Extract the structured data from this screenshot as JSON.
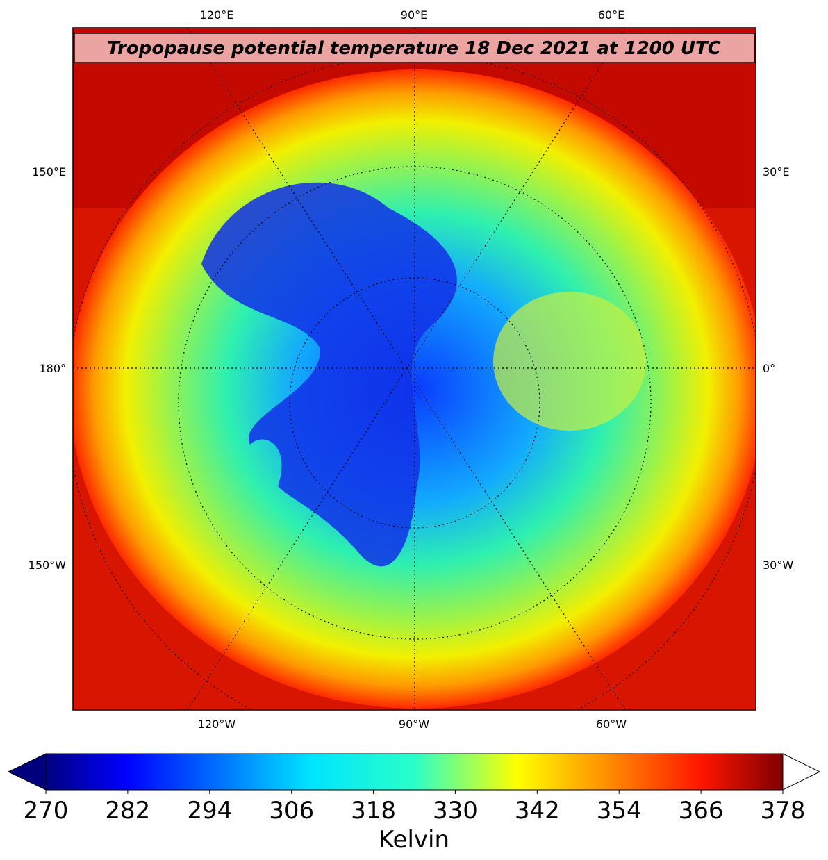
{
  "map": {
    "title": "Tropopause potential temperature 18 Dec 2021 at 1200 UTC",
    "top_labels": [
      "120°E",
      "90°E",
      "60°E"
    ],
    "bottom_labels": [
      "120°W",
      "90°W",
      "60°W"
    ],
    "left_labels": [
      "150°E",
      "180°",
      "150°W"
    ],
    "right_labels": [
      "30°E",
      "0°",
      "30°W"
    ]
  },
  "colorbar": {
    "label": "Kelvin",
    "colormap": "jet",
    "extend": "both",
    "lim": [
      270,
      378
    ],
    "ticks": [
      270,
      282,
      294,
      306,
      318,
      330,
      342,
      354,
      366,
      378
    ]
  }
}
